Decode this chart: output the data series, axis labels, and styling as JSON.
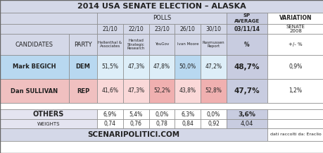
{
  "title": "2014 USA SENATE ELECTION – ALASKA",
  "footer_left": "SCENARIPOLITICI.COM",
  "footer_right": "dati raccolti da: Eraclio",
  "poll_dates": [
    "21/10",
    "22/10",
    "23/10",
    "26/10",
    "30/10"
  ],
  "poll_sources": [
    "Hellenthal &\nAssociates",
    "Harstad\nStrategic\nResearch",
    "YouGov",
    "Ivan Moore",
    "Rasmussen\nReport"
  ],
  "begich_polls": [
    "51,5%",
    "47,3%",
    "47,8%",
    "50,0%",
    "47,2%"
  ],
  "sullivan_polls": [
    "41,6%",
    "47,3%",
    "52,2%",
    "43,8%",
    "52,8%"
  ],
  "begich_avg": "48,7%",
  "sullivan_avg": "47,7%",
  "begich_var": "0,9%",
  "sullivan_var": "1,2%",
  "others_polls": [
    "6,9%",
    "5,4%",
    "0,0%",
    "6,3%",
    "0,0%"
  ],
  "others_avg": "3,6%",
  "weights": [
    "0,74",
    "0,76",
    "0,78",
    "0,84",
    "0,92"
  ],
  "weights_avg": "4,04",
  "begich_highlight": [
    false,
    false,
    false,
    true,
    false
  ],
  "sullivan_highlight": [
    false,
    false,
    true,
    false,
    true
  ],
  "color_header": "#d4d8e8",
  "color_begich_name": "#b8d8f0",
  "color_begich_row": "#ddeef8",
  "color_begich_highlight": "#b8d8f0",
  "color_sullivan_name": "#f0c0c0",
  "color_sullivan_row": "#fad8d8",
  "color_sullivan_highlight": "#f0b0b0",
  "color_others": "#e4e4f0",
  "color_avg_col": "#c8cce0",
  "color_white": "#ffffff",
  "color_footer_left": "#d4d8e8",
  "color_border": "#888888"
}
